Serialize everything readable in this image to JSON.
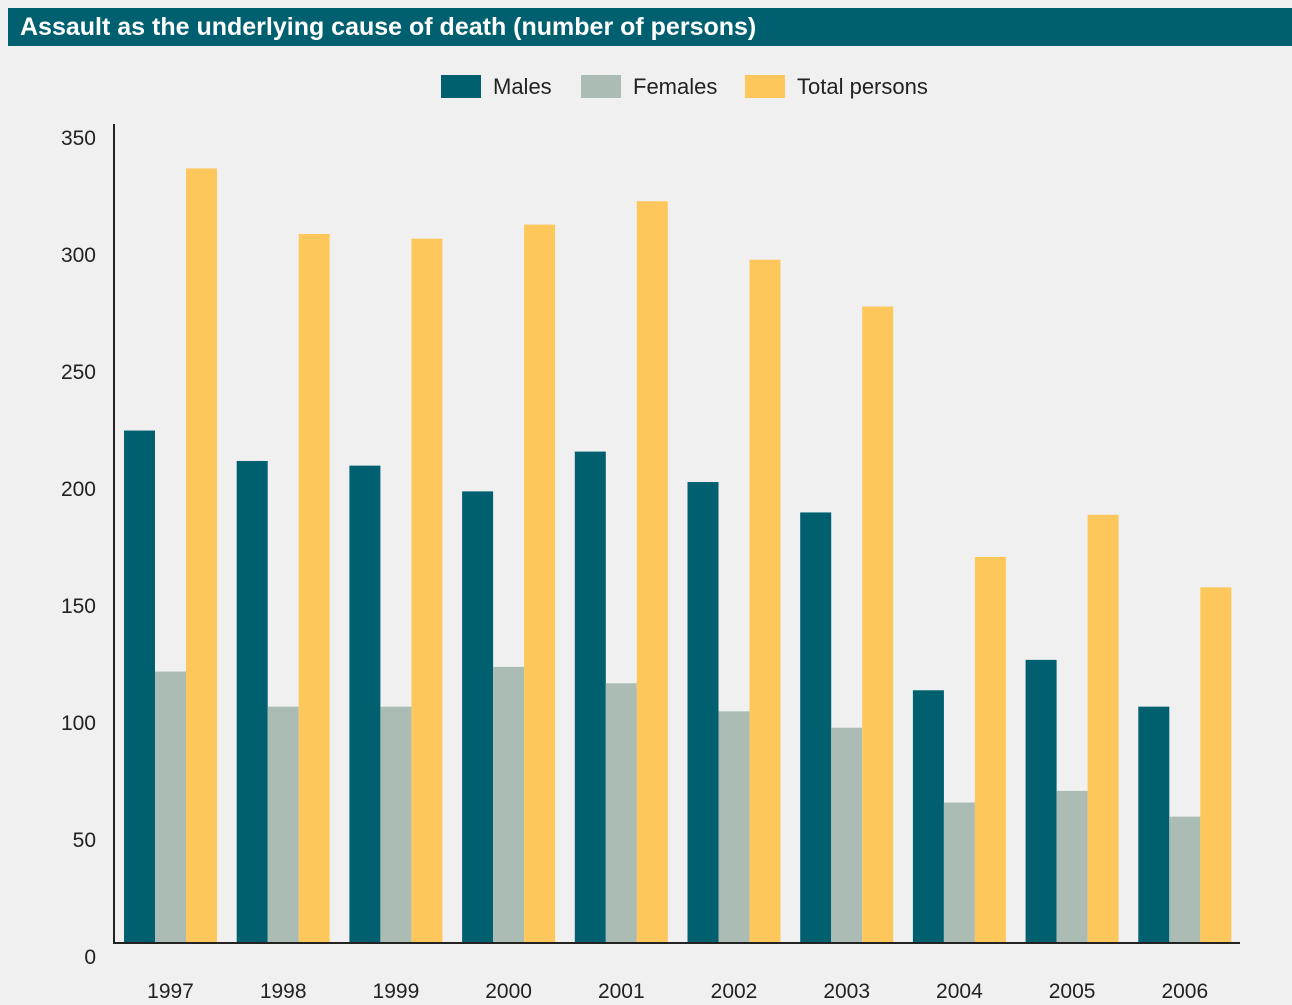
{
  "header": {
    "title": "Assault as the underlying cause of death (number of persons)"
  },
  "chart_data": {
    "type": "bar",
    "title": "Assault as the underlying cause of death (number of persons)",
    "xlabel": "",
    "ylabel": "",
    "categories": [
      "1997",
      "1998",
      "1999",
      "2000",
      "2001",
      "2002",
      "2003",
      "2004",
      "2005",
      "2006"
    ],
    "series": [
      {
        "name": "Males",
        "color": "#006070",
        "values": [
          219,
          206,
          204,
          193,
          210,
          197,
          184,
          108,
          121,
          101
        ]
      },
      {
        "name": "Females",
        "color": "#abbcb4",
        "values": [
          116,
          101,
          101,
          118,
          111,
          99,
          92,
          60,
          65,
          54
        ]
      },
      {
        "name": "Total persons",
        "color": "#fec75c",
        "values": [
          331,
          303,
          301,
          307,
          317,
          292,
          272,
          165,
          183,
          152
        ]
      }
    ],
    "ylim": [
      0,
      350
    ],
    "yticks": [
      "0",
      "50",
      "100",
      "150",
      "200",
      "250",
      "300",
      "350"
    ],
    "grid": false,
    "legend_position": "top-center"
  }
}
